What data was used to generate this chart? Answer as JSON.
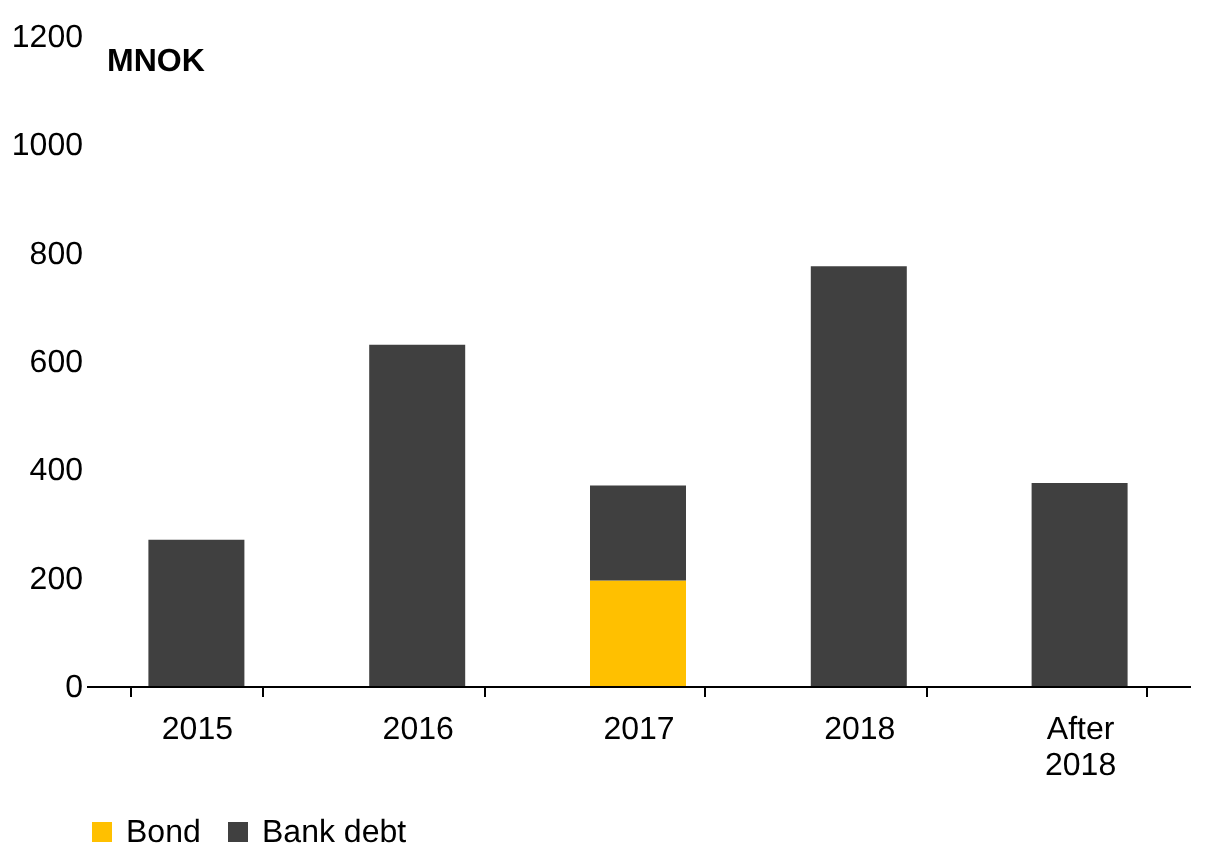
{
  "chart_data": {
    "type": "bar",
    "stacked": true,
    "ylabel": "MNOK",
    "categories": [
      "2015",
      "2016",
      "2017",
      "2018",
      "After 2018"
    ],
    "series": [
      {
        "name": "Bond",
        "color": "#ffc000",
        "values": [
          null,
          null,
          195,
          null,
          null
        ]
      },
      {
        "name": "Bank debt",
        "color": "#404040",
        "values": [
          270,
          630,
          175,
          775,
          375
        ]
      }
    ],
    "ylim": [
      0,
      1200
    ],
    "yticks": [
      0,
      200,
      400,
      600,
      800,
      1000,
      1200
    ],
    "grid": false,
    "legend": "bottom"
  }
}
